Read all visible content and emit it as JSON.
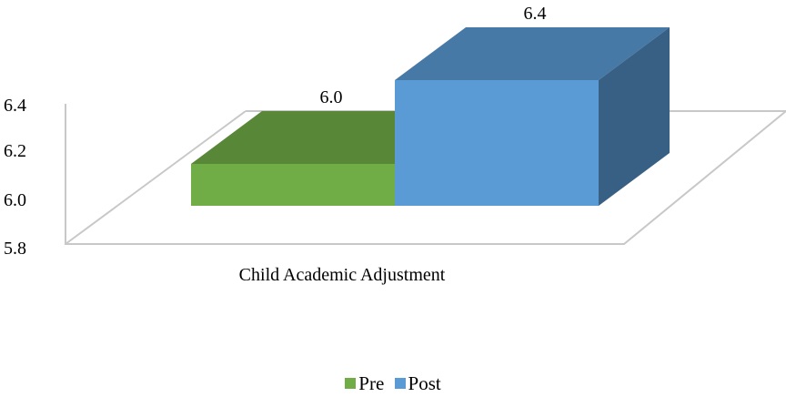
{
  "chart_data": {
    "type": "bar",
    "categories": [
      "Child Academic Adjustment"
    ],
    "series": [
      {
        "name": "Pre",
        "values": [
          6.0
        ],
        "color": "#70AD47",
        "data_label": "6.0"
      },
      {
        "name": "Post",
        "values": [
          6.4
        ],
        "color": "#5B9BD5",
        "data_label": "6.4"
      }
    ],
    "ylim": [
      5.8,
      6.4
    ],
    "yticks": [
      "5.8",
      "6.0",
      "6.2",
      "6.4"
    ],
    "grid": false,
    "legend_position": "bottom",
    "style": "3d"
  }
}
